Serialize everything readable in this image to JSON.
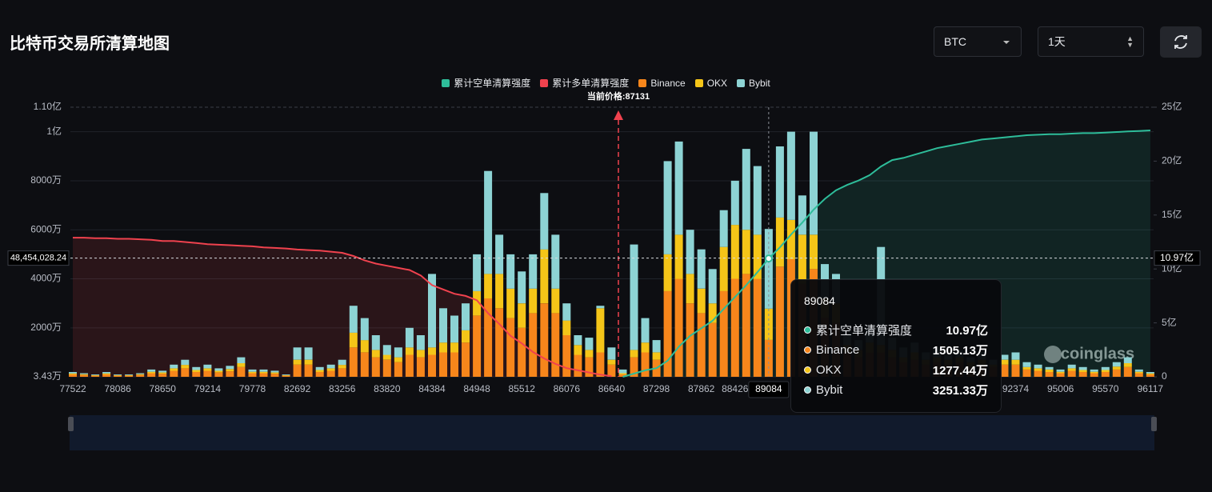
{
  "header": {
    "title": "比特币交易所清算地图",
    "symbol": "BTC",
    "interval": "1天"
  },
  "chart_data": {
    "type": "bar",
    "stacked": true,
    "categories": [
      "77522",
      null,
      null,
      null,
      "78086",
      null,
      null,
      null,
      "78650",
      null,
      null,
      null,
      "79214",
      null,
      null,
      null,
      "79778",
      null,
      null,
      null,
      "82692",
      null,
      null,
      null,
      "83256",
      null,
      null,
      null,
      "83820",
      null,
      null,
      null,
      "84384",
      null,
      null,
      null,
      "84948",
      null,
      null,
      null,
      "85512",
      null,
      null,
      null,
      "86076",
      null,
      null,
      null,
      "86640",
      null,
      null,
      null,
      "87298",
      null,
      null,
      null,
      "87862",
      null,
      null,
      "88426",
      null,
      null,
      "89084",
      null,
      null,
      null,
      null,
      null,
      null,
      null,
      null,
      null,
      null,
      null,
      null,
      null,
      null,
      null,
      null,
      null,
      null,
      null,
      null,
      null,
      "92374",
      null,
      null,
      null,
      "95006",
      null,
      null,
      null,
      "95570",
      null,
      null,
      null,
      "96117"
    ],
    "series": [
      {
        "name": "累计空单清算强度",
        "type": "line",
        "axis": "y2",
        "color": "#2ebd9a",
        "values": [
          null,
          null,
          null,
          null,
          null,
          null,
          null,
          null,
          null,
          null,
          null,
          null,
          null,
          null,
          null,
          null,
          null,
          null,
          null,
          null,
          null,
          null,
          null,
          null,
          null,
          null,
          null,
          null,
          null,
          null,
          null,
          null,
          null,
          null,
          null,
          null,
          null,
          null,
          null,
          null,
          null,
          null,
          null,
          null,
          null,
          null,
          null,
          null,
          null,
          0,
          30000000,
          60000000,
          80000000,
          150000000,
          280000000,
          380000000,
          450000000,
          520000000,
          630000000,
          740000000,
          850000000,
          970000000,
          1097000000,
          1200000000,
          1320000000,
          1430000000,
          1550000000,
          1650000000,
          1730000000,
          1780000000,
          1820000000,
          1870000000,
          1950000000,
          2010000000,
          2030000000,
          2060000000,
          2090000000,
          2120000000,
          2140000000,
          2160000000,
          2180000000,
          2200000000,
          2210000000,
          2220000000,
          2230000000,
          2240000000,
          2245000000,
          2250000000,
          2250000000,
          2255000000,
          2260000000,
          2260000000,
          2265000000,
          2270000000,
          2275000000,
          2280000000,
          2285000000
        ]
      },
      {
        "name": "累计多单清算强度",
        "type": "line",
        "axis": "y2",
        "color": "#f0424e",
        "values": [
          1290000000,
          1290000000,
          1285000000,
          1285000000,
          1280000000,
          1280000000,
          1275000000,
          1270000000,
          1260000000,
          1260000000,
          1250000000,
          1240000000,
          1230000000,
          1225000000,
          1220000000,
          1215000000,
          1210000000,
          1200000000,
          1195000000,
          1190000000,
          1180000000,
          1175000000,
          1170000000,
          1160000000,
          1150000000,
          1120000000,
          1080000000,
          1050000000,
          1030000000,
          1010000000,
          990000000,
          940000000,
          850000000,
          810000000,
          770000000,
          750000000,
          710000000,
          590000000,
          490000000,
          380000000,
          310000000,
          230000000,
          170000000,
          120000000,
          80000000,
          60000000,
          40000000,
          20000000,
          5000000,
          null,
          null,
          null,
          null,
          null,
          null,
          null,
          null,
          null,
          null,
          null,
          null,
          null,
          null,
          null,
          null,
          null,
          null,
          null,
          null,
          null,
          null,
          null,
          null,
          null,
          null,
          null,
          null,
          null,
          null,
          null,
          null,
          null,
          null,
          null,
          null,
          null,
          null,
          null,
          null,
          null,
          null,
          null,
          null,
          null,
          null,
          null,
          null
        ]
      },
      {
        "name": "Binance",
        "color": "#f7861b",
        "values": [
          1000000,
          800000,
          500000,
          1000000,
          500000,
          500000,
          800000,
          1500000,
          1300000,
          2500000,
          3500000,
          2000000,
          2500000,
          1800000,
          2300000,
          4000000,
          1500000,
          1500000,
          1300000,
          500000,
          5000000,
          5000000,
          2000000,
          2500000,
          3500000,
          12000000,
          10000000,
          8000000,
          7000000,
          6000000,
          9000000,
          8000000,
          9000000,
          10000000,
          10000000,
          14000000,
          25000000,
          32000000,
          28000000,
          24000000,
          20000000,
          26000000,
          30000000,
          26000000,
          17000000,
          9000000,
          8000000,
          10000000,
          5000000,
          1000000,
          8000000,
          10000000,
          7000000,
          35000000,
          40000000,
          30000000,
          26000000,
          22000000,
          35000000,
          40000000,
          42000000,
          40000000,
          15051300,
          45000000,
          48000000,
          38000000,
          44000000,
          24000000,
          22000000,
          10000000,
          8000000,
          10000000,
          10000000,
          8000000,
          6000000,
          7000000,
          5000000,
          6000000,
          5000000,
          6000000,
          4000000,
          5000000,
          4000000,
          5000000,
          5000000,
          3000000,
          2500000,
          2000000,
          1500000,
          2500000,
          2000000,
          1500000,
          2000000,
          3000000,
          4000000,
          1500000,
          1000000
        ]
      },
      {
        "name": "OKX",
        "color": "#f5c518",
        "values": [
          400000,
          300000,
          200000,
          400000,
          200000,
          200000,
          300000,
          600000,
          500000,
          1000000,
          1400000,
          800000,
          1000000,
          700000,
          900000,
          1600000,
          600000,
          600000,
          500000,
          200000,
          2000000,
          2000000,
          800000,
          1000000,
          1400000,
          6000000,
          5000000,
          3000000,
          2000000,
          2000000,
          3000000,
          3000000,
          3000000,
          4000000,
          4000000,
          5000000,
          10000000,
          10000000,
          14000000,
          12000000,
          10000000,
          10000000,
          22000000,
          10000000,
          6000000,
          4000000,
          3000000,
          18000000,
          2000000,
          500000,
          3000000,
          4000000,
          3000000,
          15000000,
          18000000,
          12000000,
          10000000,
          8000000,
          18000000,
          22000000,
          18000000,
          18000000,
          12774400,
          20000000,
          16000000,
          20000000,
          14000000,
          8000000,
          8000000,
          3000000,
          3000000,
          4000000,
          3000000,
          3000000,
          2000000,
          3000000,
          2000000,
          2000000,
          2000000,
          2000000,
          2000000,
          2000000,
          1000000,
          2000000,
          2000000,
          1000000,
          1000000,
          1000000,
          600000,
          1000000,
          800000,
          600000,
          800000,
          1200000,
          1600000,
          600000,
          400000
        ]
      },
      {
        "name": "Bybit",
        "color": "#8dd3d4",
        "values": [
          600000,
          400000,
          300000,
          600000,
          300000,
          300000,
          400000,
          900000,
          700000,
          1500000,
          2100000,
          1200000,
          1500000,
          1000000,
          1300000,
          2400000,
          900000,
          900000,
          700000,
          300000,
          5000000,
          5000000,
          1200000,
          1500000,
          2100000,
          11000000,
          9000000,
          6000000,
          4000000,
          4000000,
          8000000,
          6000000,
          30000000,
          14000000,
          11000000,
          11000000,
          15000000,
          42000000,
          16000000,
          14000000,
          13000000,
          14000000,
          23000000,
          22000000,
          7000000,
          4000000,
          5000000,
          1000000,
          5000000,
          1500000,
          43000000,
          10000000,
          5000000,
          38000000,
          38000000,
          18000000,
          16000000,
          14000000,
          15000000,
          18000000,
          33000000,
          28000000,
          32513300,
          29000000,
          36000000,
          16000000,
          42000000,
          14000000,
          12000000,
          5000000,
          4000000,
          6000000,
          40000000,
          5000000,
          4000000,
          4000000,
          3000000,
          4000000,
          2000000,
          3000000,
          2000000,
          3000000,
          2000000,
          2000000,
          3000000,
          2000000,
          1500000,
          1000000,
          900000,
          1500000,
          1200000,
          900000,
          1200000,
          1800000,
          2400000,
          900000,
          600000
        ]
      }
    ],
    "ylim": [
      34300,
      110000000
    ],
    "yticks": [
      {
        "value": 34300,
        "label": "3.43万"
      },
      {
        "value": 20000000,
        "label": "2000万"
      },
      {
        "value": 40000000,
        "label": "4000万"
      },
      {
        "value": 60000000,
        "label": "6000万"
      },
      {
        "value": 80000000,
        "label": "8000万"
      },
      {
        "value": 100000000,
        "label": "1亿"
      },
      {
        "value": 110000000,
        "label": "1.10亿"
      }
    ],
    "y2lim": [
      0,
      2500000000
    ],
    "y2ticks": [
      0,
      {
        "value": 500000000,
        "label": "5亿"
      },
      {
        "value": 1000000000,
        "label": "10亿"
      },
      {
        "value": 1500000000,
        "label": "15亿"
      },
      {
        "value": 2000000000,
        "label": "20亿"
      },
      {
        "value": 2500000000,
        "label": "25亿"
      }
    ],
    "grid": true,
    "annotation": "当前价格:87131",
    "crosshair": {
      "y": {
        "value": 48454028.24,
        "label": "48,454,028.24"
      },
      "y2_label": "10.97亿"
    },
    "tooltip": {
      "title": "89084",
      "rows": [
        {
          "name": "累计空单清算强度",
          "value": "10.97亿"
        },
        {
          "name": "Binance",
          "value": "1505.13万"
        },
        {
          "name": "OKX",
          "value": "1277.44万"
        },
        {
          "name": "Bybit",
          "value": "3251.33万"
        }
      ]
    },
    "watermark": "coinglass"
  }
}
